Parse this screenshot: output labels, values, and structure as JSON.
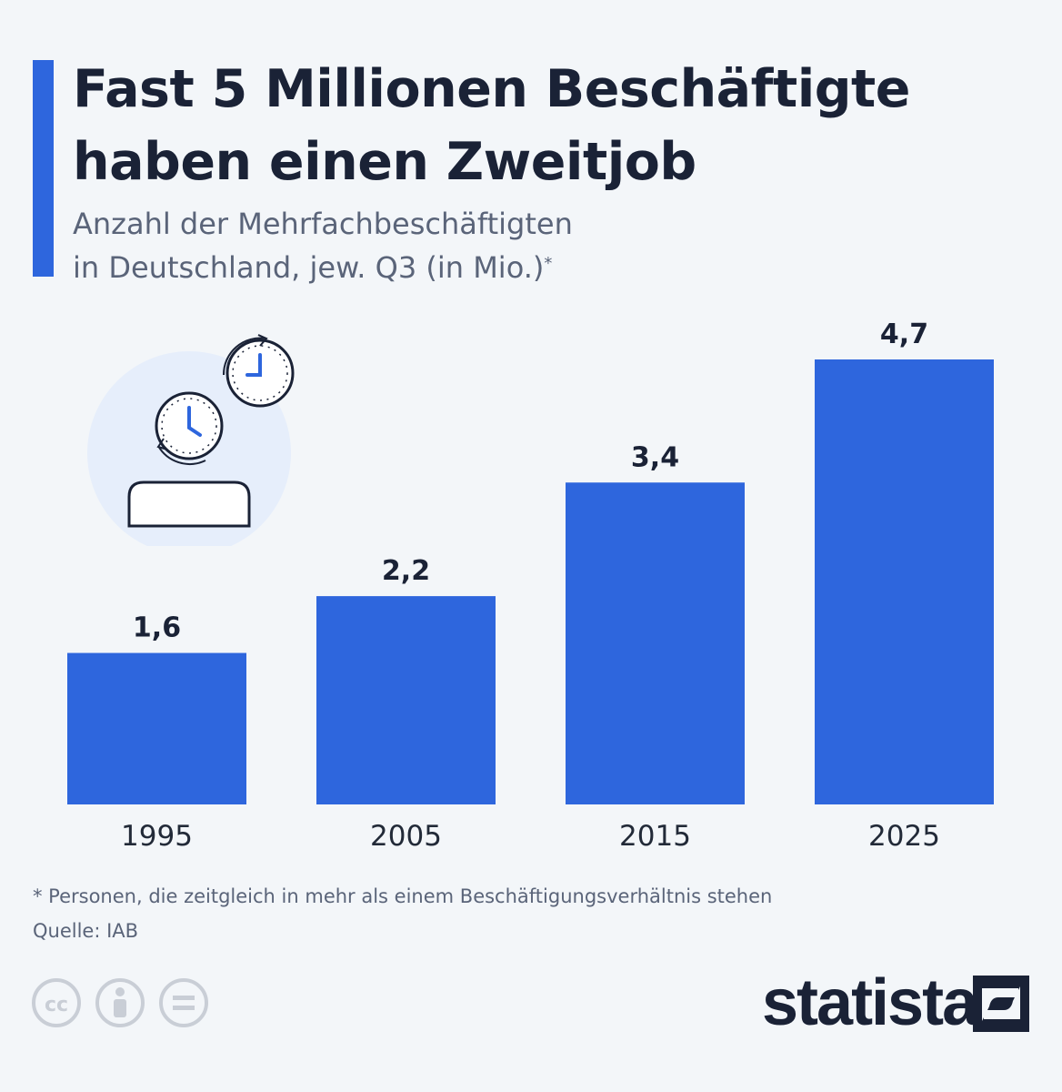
{
  "header": {
    "title_line1": "Fast 5 Millionen Beschäftigte",
    "title_line2": "haben einen Zweitjob",
    "subtitle_line1": "Anzahl der Mehrfachbeschäftigten",
    "subtitle_line2": "in Deutschland, jew. Q3 (in Mio.)",
    "subtitle_mark": "*"
  },
  "colors": {
    "accent": "#2e66dd",
    "text_dark": "#1a2236",
    "background": "#f3f6f9"
  },
  "chart_data": {
    "type": "bar",
    "title": "Fast 5 Millionen Beschäftigte haben einen Zweitjob",
    "subtitle": "Anzahl der Mehrfachbeschäftigten in Deutschland, jew. Q3 (in Mio.)*",
    "categories": [
      "1995",
      "2005",
      "2015",
      "2025"
    ],
    "values": [
      1.6,
      2.2,
      3.4,
      4.7
    ],
    "value_labels": [
      "1,6",
      "2,2",
      "3,4",
      "4,7"
    ],
    "xlabel": "",
    "ylabel": "",
    "ylim": [
      0,
      4.7
    ],
    "grid": false,
    "legend": "none"
  },
  "footer": {
    "footnote": "* Personen, die zeitgleich in mehr als einem Beschäftigungsverhältnis stehen",
    "source": "Quelle: IAB",
    "license_icons": [
      "cc-icon",
      "attribution-icon",
      "no-derivatives-icon"
    ],
    "logo_text": "statista"
  },
  "illustration": {
    "icons": [
      "clock-icon",
      "clock-icon",
      "block-icon"
    ]
  }
}
